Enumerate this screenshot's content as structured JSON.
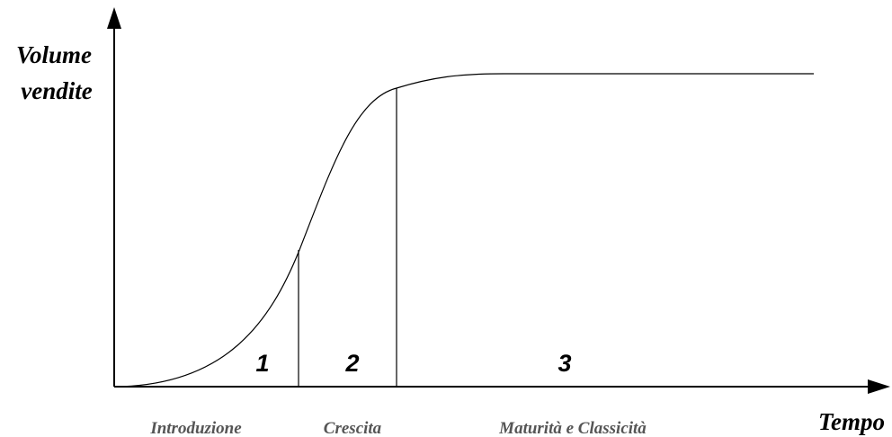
{
  "axes": {
    "y_label": [
      "Volume",
      "vendite"
    ],
    "x_label": "Tempo"
  },
  "phases": [
    {
      "number": "1",
      "name": "Introduzione"
    },
    {
      "number": "2",
      "name": "Crescita"
    },
    {
      "number": "3",
      "name": "Maturità e Classicità"
    }
  ]
}
